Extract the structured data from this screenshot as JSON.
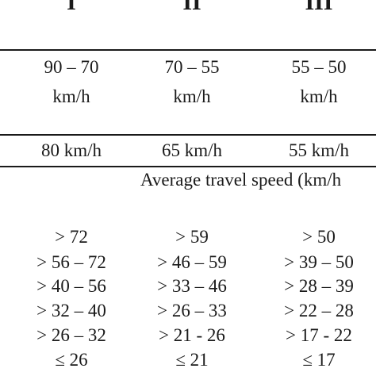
{
  "columns": [
    {
      "roman": "I",
      "range_value": "90 – 70",
      "range_unit": "km/h",
      "design_speed": "80 km/h"
    },
    {
      "roman": "II",
      "range_value": "70 – 55",
      "range_unit": "km/h",
      "design_speed": "65 km/h"
    },
    {
      "roman": "III",
      "range_value": "55 – 50",
      "range_unit": "km/h",
      "design_speed": "55 km/h"
    }
  ],
  "section_heading": "Average travel speed (km/h",
  "speed_levels": [
    [
      "> 72",
      "> 59",
      "> 50"
    ],
    [
      "> 56 – 72",
      "> 46 – 59",
      "> 39 – 50"
    ],
    [
      "> 40 – 56",
      "> 33 – 46",
      "> 28 – 39"
    ],
    [
      "> 32 – 40",
      "> 26 – 33",
      "> 22 – 28"
    ],
    [
      "> 26 – 32",
      "> 21 - 26",
      "> 17 - 22"
    ],
    [
      "≤ 26",
      "≤ 21",
      "≤ 17"
    ]
  ]
}
